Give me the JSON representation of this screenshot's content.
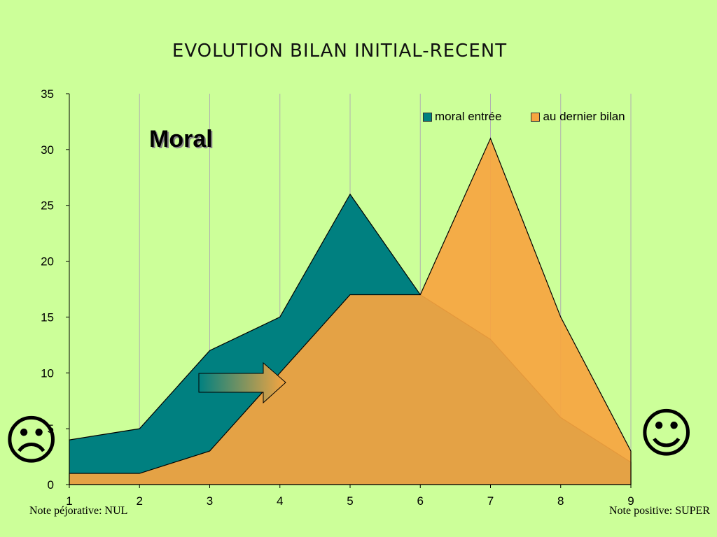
{
  "page": {
    "title": "EVOLUTION  BILAN  INITIAL-RECENT"
  },
  "annotation": {
    "moral_label": "Moral",
    "note_left": "Note péjorative: NUL",
    "note_right": "Note positive: SUPER",
    "sad_face": "☹",
    "happy_face": "☺"
  },
  "chart_data": {
    "type": "area",
    "categories": [
      "1",
      "2",
      "3",
      "4",
      "5",
      "6",
      "7",
      "8",
      "9"
    ],
    "ylim": [
      0,
      35
    ],
    "yticks": [
      0,
      5,
      10,
      15,
      20,
      25,
      30,
      35
    ],
    "grid": {
      "vertical": true,
      "horizontal": false
    },
    "legend_position": "top-right",
    "series": [
      {
        "name": "moral entrée",
        "color": "#008080",
        "values": [
          4,
          5,
          12,
          15,
          26,
          17,
          13,
          6,
          2
        ]
      },
      {
        "name": "au dernier bilan",
        "color": "#F7A540",
        "values": [
          1,
          1,
          3,
          10,
          17,
          17,
          31,
          15,
          3
        ]
      }
    ]
  }
}
